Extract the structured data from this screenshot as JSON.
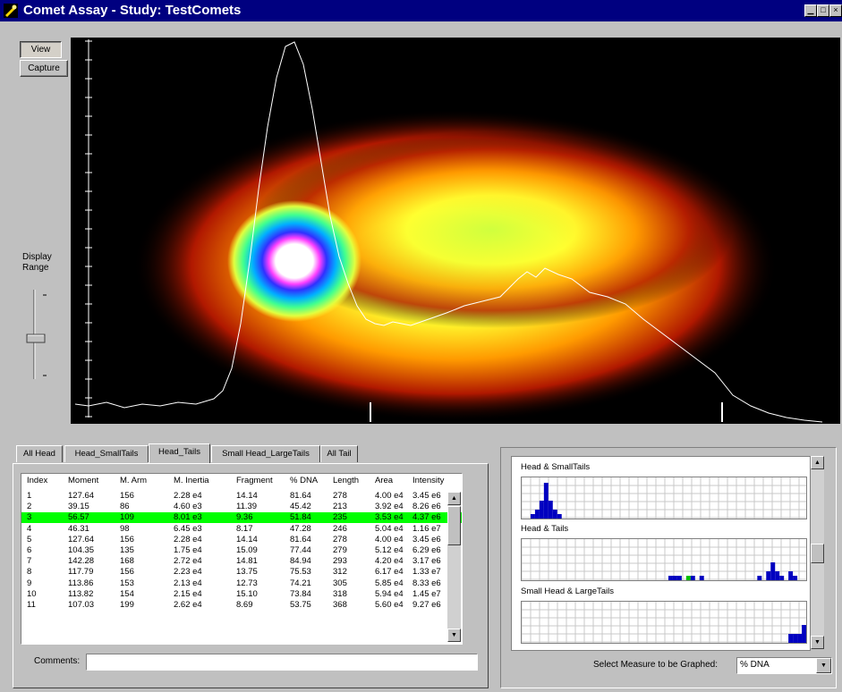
{
  "window": {
    "title": "Comet Assay  -  Study: TestComets",
    "minimize": "▁",
    "maximize": "□",
    "close": "×"
  },
  "left_panel": {
    "view_button": "View",
    "capture_button": "Capture",
    "display_range_label": [
      "Display",
      "Range"
    ],
    "display_range_level": 0.45
  },
  "tabs": [
    {
      "label": "All Head",
      "active": false
    },
    {
      "label": "Head_SmallTails",
      "active": false
    },
    {
      "label": "Head_Tails",
      "active": true
    },
    {
      "label": "Small Head_LargeTails",
      "active": false
    },
    {
      "label": "All Tail",
      "active": false
    }
  ],
  "table": {
    "columns": [
      "Index",
      "Moment",
      "M. Arm",
      "M. Inertia",
      "Fragment",
      "% DNA",
      "Length",
      "Area",
      "Intensity"
    ],
    "rows": [
      [
        "1",
        "127.64",
        "156",
        "2.28 e4",
        "14.14",
        "81.64",
        "278",
        "4.00 e4",
        "3.45 e6"
      ],
      [
        "2",
        "39.15",
        "86",
        "4.60 e3",
        "11.39",
        "45.42",
        "213",
        "3.92 e4",
        "8.26 e6"
      ],
      [
        "3",
        "56.57",
        "109",
        "8.01 e3",
        "9.36",
        "51.84",
        "235",
        "3.53 e4",
        "4.37 e6"
      ],
      [
        "4",
        "46.31",
        "98",
        "6.45 e3",
        "8.17",
        "47.28",
        "246",
        "5.04 e4",
        "1.16 e7"
      ],
      [
        "5",
        "127.64",
        "156",
        "2.28 e4",
        "14.14",
        "81.64",
        "278",
        "4.00 e4",
        "3.45 e6"
      ],
      [
        "6",
        "104.35",
        "135",
        "1.75 e4",
        "15.09",
        "77.44",
        "279",
        "5.12 e4",
        "6.29 e6"
      ],
      [
        "7",
        "142.28",
        "168",
        "2.72 e4",
        "14.81",
        "84.94",
        "293",
        "4.20 e4",
        "3.17 e6"
      ],
      [
        "8",
        "117.79",
        "156",
        "2.23 e4",
        "13.75",
        "75.53",
        "312",
        "6.17 e4",
        "1.33 e7"
      ],
      [
        "9",
        "113.86",
        "153",
        "2.13 e4",
        "12.73",
        "74.21",
        "305",
        "5.85 e4",
        "8.33 e6"
      ],
      [
        "10",
        "113.82",
        "154",
        "2.15 e4",
        "15.10",
        "73.84",
        "318",
        "5.94 e4",
        "1.45 e7"
      ],
      [
        "11",
        "107.03",
        "199",
        "2.62 e4",
        "8.69",
        "53.75",
        "368",
        "5.60 e4",
        "9.27 e6"
      ]
    ],
    "selected_row": 2
  },
  "comments": {
    "label": "Comments:",
    "value": ""
  },
  "graphs": [
    {
      "title": "Head & SmallTails",
      "bars": [
        0,
        0,
        1,
        2,
        4,
        8,
        4,
        2,
        1,
        0,
        0,
        0,
        0,
        0,
        0,
        0,
        0,
        0,
        0,
        0,
        0,
        0,
        0,
        0,
        0,
        0,
        0,
        0,
        0,
        0,
        0,
        0,
        0,
        0,
        0,
        0,
        0,
        0,
        0,
        0,
        0,
        0,
        0,
        0,
        0,
        0,
        0,
        0,
        0,
        0,
        0,
        0,
        0,
        0,
        0,
        0,
        0,
        0,
        0,
        0,
        0,
        0,
        0,
        0
      ],
      "highlight": -1
    },
    {
      "title": "Head & Tails",
      "bars": [
        0,
        0,
        0,
        0,
        0,
        0,
        0,
        0,
        0,
        0,
        0,
        0,
        0,
        0,
        0,
        0,
        0,
        0,
        0,
        0,
        0,
        0,
        0,
        0,
        0,
        0,
        0,
        0,
        0,
        0,
        0,
        0,
        0,
        1,
        1,
        1,
        0,
        1,
        1,
        0,
        1,
        0,
        0,
        0,
        0,
        0,
        0,
        0,
        0,
        0,
        0,
        0,
        0,
        1,
        0,
        2,
        4,
        2,
        1,
        0,
        2,
        1,
        0,
        0
      ],
      "highlight": 37
    },
    {
      "title": "Small Head & LargeTails",
      "bars": [
        0,
        0,
        0,
        0,
        0,
        0,
        0,
        0,
        0,
        0,
        0,
        0,
        0,
        0,
        0,
        0,
        0,
        0,
        0,
        0,
        0,
        0,
        0,
        0,
        0,
        0,
        0,
        0,
        0,
        0,
        0,
        0,
        0,
        0,
        0,
        0,
        0,
        0,
        0,
        0,
        0,
        0,
        0,
        0,
        0,
        0,
        0,
        0,
        0,
        0,
        0,
        0,
        0,
        0,
        0,
        0,
        0,
        0,
        0,
        0,
        2,
        2,
        2,
        4
      ],
      "highlight": -1
    }
  ],
  "select_measure": {
    "label": "Select Measure to be Graphed:",
    "value": "% DNA"
  },
  "colors": {
    "titlebar": "#000080",
    "selected_row": "#00ff00",
    "histogram_bar": "#0000c0",
    "histogram_highlight": "#00c000"
  },
  "icons": {
    "scroll_up": "▲",
    "scroll_down": "▼",
    "dropdown": "▼"
  }
}
